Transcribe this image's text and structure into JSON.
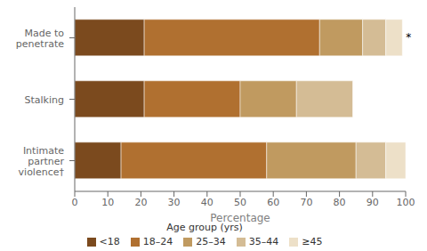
{
  "chart_data": {
    "type": "bar",
    "orientation": "horizontal",
    "stacked": true,
    "xlabel": "Percentage",
    "legend_title": "Age group (yrs)",
    "categories": [
      "Made to\npenetrate",
      "Stalking",
      "Intimate\npartner\nviolence†"
    ],
    "series": [
      {
        "name": "<18",
        "color": "#7B4A1E",
        "values": [
          21,
          21,
          14
        ]
      },
      {
        "name": "18–24",
        "color": "#B07030",
        "values": [
          53,
          29,
          44
        ]
      },
      {
        "name": "25–34",
        "color": "#C09A60",
        "values": [
          13,
          17,
          27
        ]
      },
      {
        "name": "35–44",
        "color": "#D4BC95",
        "values": [
          7,
          17,
          9
        ]
      },
      {
        "name": "≥45",
        "color": "#EDE0C8",
        "values": [
          5,
          0,
          6
        ]
      }
    ],
    "xlim": [
      0,
      100
    ],
    "xticks": [
      0,
      10,
      20,
      30,
      40,
      50,
      60,
      70,
      80,
      90,
      100
    ],
    "grid": false,
    "legend": "bottom",
    "annotations": [
      {
        "text": "*",
        "category": "Made to\npenetrate"
      }
    ]
  }
}
